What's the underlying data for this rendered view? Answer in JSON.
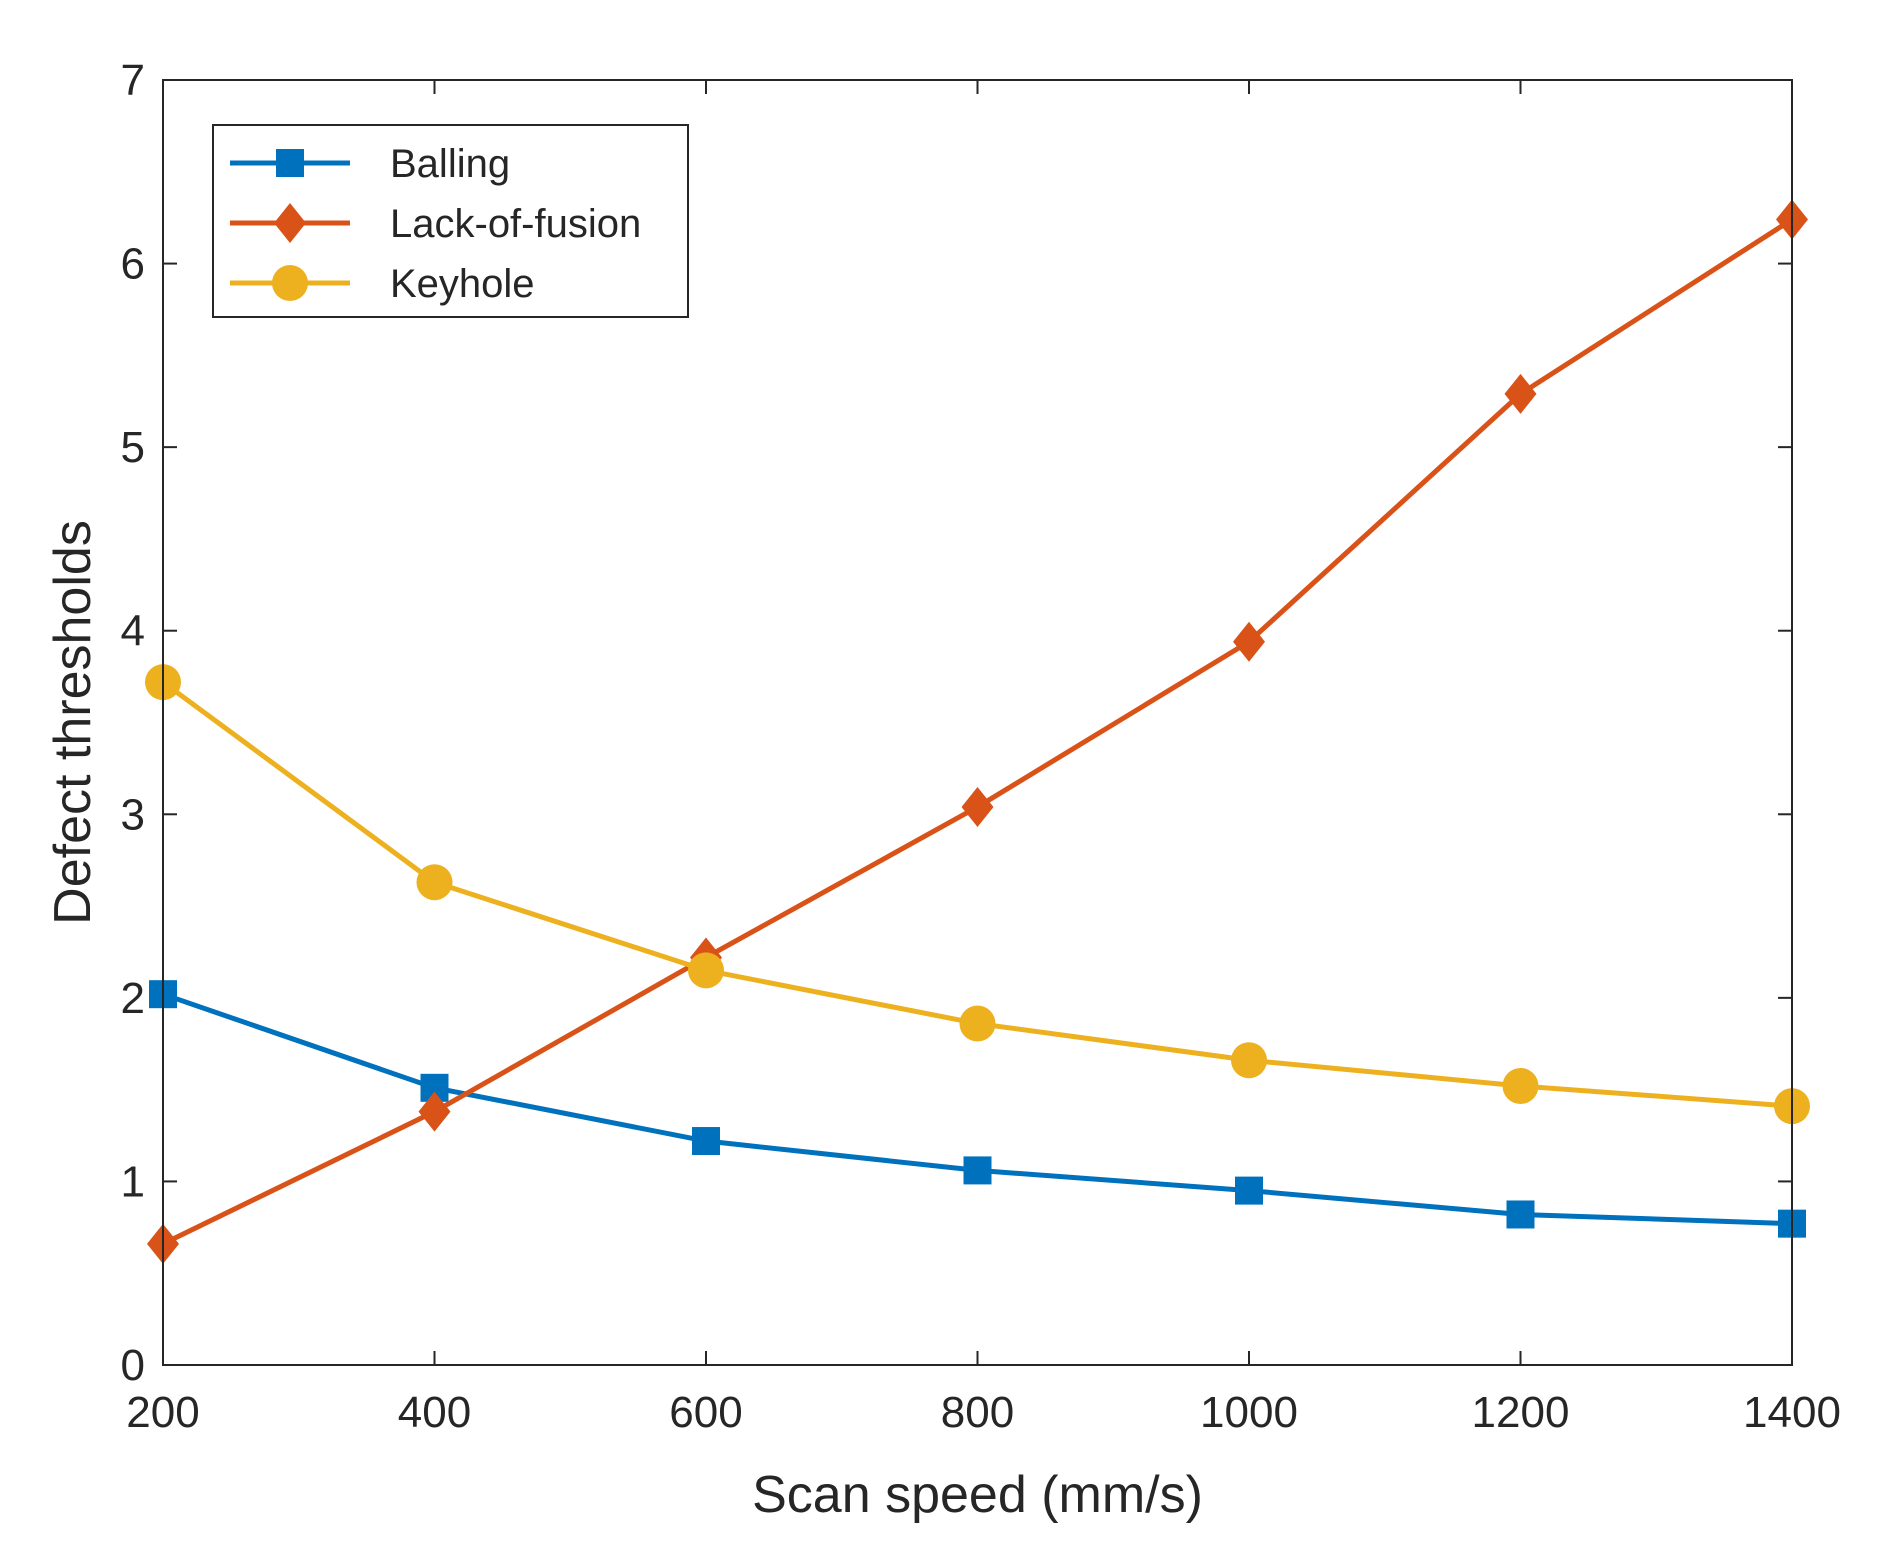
{
  "chart_data": {
    "type": "line",
    "title": "",
    "xlabel": "Scan speed (mm/s)",
    "ylabel": "Defect thresholds",
    "xlim": [
      200,
      1400
    ],
    "ylim": [
      0,
      7
    ],
    "x": [
      200,
      400,
      600,
      800,
      1000,
      1200,
      1400
    ],
    "xticks": [
      200,
      400,
      600,
      800,
      1000,
      1200,
      1400
    ],
    "yticks": [
      0,
      1,
      2,
      3,
      4,
      5,
      6,
      7
    ],
    "grid": false,
    "legend_position": "top-left",
    "series": [
      {
        "name": "Balling",
        "color": "#0072BD",
        "marker": "square",
        "values": [
          2.02,
          1.51,
          1.22,
          1.06,
          0.95,
          0.82,
          0.77
        ]
      },
      {
        "name": "Lack-of-fusion",
        "color": "#D95319",
        "marker": "diamond",
        "values": [
          0.66,
          1.38,
          2.22,
          3.04,
          3.94,
          5.29,
          6.24
        ]
      },
      {
        "name": "Keyhole",
        "color": "#EDB120",
        "marker": "circle",
        "values": [
          3.72,
          2.63,
          2.15,
          1.86,
          1.66,
          1.52,
          1.41
        ]
      }
    ]
  }
}
